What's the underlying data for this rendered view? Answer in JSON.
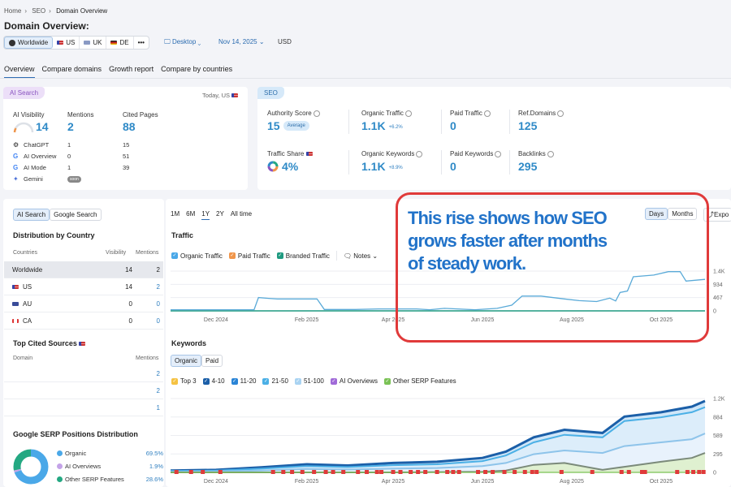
{
  "breadcrumb": [
    "Home",
    "SEO",
    "Domain Overview"
  ],
  "page_title": "Domain Overview:",
  "regions": [
    {
      "label": "Worldwide",
      "icon": "globe-icon"
    },
    {
      "label": "US",
      "icon": "flag-us"
    },
    {
      "label": "UK",
      "icon": "flag-uk"
    },
    {
      "label": "DE",
      "icon": "flag-de"
    },
    {
      "label": "•••",
      "icon": "more-icon"
    }
  ],
  "device": "Desktop",
  "date": "Nov 14, 2025",
  "currency": "USD",
  "tabs": [
    "Overview",
    "Compare domains",
    "Growth report",
    "Compare by countries"
  ],
  "ai_search": {
    "badge": "AI Search",
    "scope": "Today, US",
    "visibility_label": "AI Visibility",
    "visibility": "14",
    "mentions_label": "Mentions",
    "mentions": "2",
    "cited_label": "Cited Pages",
    "cited": "88",
    "rows": [
      {
        "name": "ChatGPT",
        "mentions": "1",
        "cited": "15"
      },
      {
        "name": "AI Overview",
        "mentions": "0",
        "cited": "51"
      },
      {
        "name": "AI Mode",
        "mentions": "1",
        "cited": "39"
      },
      {
        "name": "Gemini",
        "mentions": "soon",
        "cited": ""
      }
    ]
  },
  "seo": {
    "badge": "SEO",
    "metrics": [
      {
        "label": "Authority Score",
        "value": "15",
        "extra": "Average"
      },
      {
        "label": "Organic Traffic",
        "value": "1.1K",
        "extra": "+6.2%"
      },
      {
        "label": "Paid Traffic",
        "value": "0",
        "extra": ""
      },
      {
        "label": "Ref.Domains",
        "value": "125",
        "extra": ""
      },
      {
        "label": "Traffic Share",
        "value": "4%",
        "extra": ""
      },
      {
        "label": "Organic Keywords",
        "value": "1.1K",
        "extra": "+8.9%"
      },
      {
        "label": "Paid Keywords",
        "value": "0",
        "extra": ""
      },
      {
        "label": "Backlinks",
        "value": "295",
        "extra": ""
      }
    ]
  },
  "left": {
    "toggle": [
      "AI Search",
      "Google Search"
    ],
    "dist_title": "Distribution by Country",
    "dist_headers": [
      "Countries",
      "Visibility",
      "Mentions"
    ],
    "dist_rows": [
      {
        "country": "Worldwide",
        "visibility": "14",
        "mentions": "2"
      },
      {
        "country": "US",
        "visibility": "14",
        "mentions": "2"
      },
      {
        "country": "AU",
        "visibility": "0",
        "mentions": "0"
      },
      {
        "country": "CA",
        "visibility": "0",
        "mentions": "0"
      }
    ],
    "cited_title": "Top Cited Sources",
    "cited_headers": [
      "Domain",
      "Mentions"
    ],
    "cited_rows": [
      "2",
      "2",
      "1"
    ],
    "serp_title": "Google SERP Positions Distribution",
    "serp": [
      {
        "name": "Organic",
        "pct": "69.5%",
        "value": 69.5,
        "color": "#4aa8e8"
      },
      {
        "name": "AI Overviews",
        "pct": "1.9%",
        "value": 1.9,
        "color": "#c4a3e8"
      },
      {
        "name": "Other SERP Features",
        "pct": "28.6%",
        "value": 28.6,
        "color": "#24a882"
      }
    ]
  },
  "ranges": [
    "1M",
    "6M",
    "1Y",
    "2Y",
    "All time"
  ],
  "active_range": "1Y",
  "granularity": [
    "Days",
    "Months"
  ],
  "export": "Expo",
  "annotation": [
    "This rise shows how SEO",
    "grows faster after months",
    "of steady work."
  ],
  "chart_data": [
    {
      "type": "line",
      "title": "Traffic",
      "legend": [
        {
          "name": "Organic Traffic",
          "color": "#4aa8e8"
        },
        {
          "name": "Paid Traffic",
          "color": "#f0954a"
        },
        {
          "name": "Branded Traffic",
          "color": "#1f9a80"
        }
      ],
      "notes_label": "Notes",
      "x_ticks": [
        "Dec 2024",
        "Feb 2025",
        "Apr 2025",
        "Jun 2025",
        "Aug 2025",
        "Oct 2025"
      ],
      "y_ticks": [
        "0",
        "467",
        "934",
        "1.4K"
      ],
      "ylim": [
        0,
        1401
      ],
      "xlim": [
        "2024-11-14",
        "2025-11-14"
      ],
      "series": [
        {
          "name": "Organic Traffic",
          "color": "#5aaad8",
          "points": [
            [
              "2024-11-14",
              40
            ],
            [
              "2025-01-10",
              40
            ],
            [
              "2025-01-13",
              470
            ],
            [
              "2025-01-20",
              440
            ],
            [
              "2025-01-26",
              420
            ],
            [
              "2025-02-22",
              420
            ],
            [
              "2025-02-27",
              50
            ],
            [
              "2025-03-20",
              50
            ],
            [
              "2025-04-05",
              70
            ],
            [
              "2025-05-01",
              70
            ],
            [
              "2025-05-10",
              40
            ],
            [
              "2025-05-20",
              90
            ],
            [
              "2025-06-10",
              40
            ],
            [
              "2025-06-25",
              90
            ],
            [
              "2025-07-05",
              200
            ],
            [
              "2025-07-12",
              520
            ],
            [
              "2025-07-25",
              520
            ],
            [
              "2025-08-10",
              420
            ],
            [
              "2025-08-20",
              360
            ],
            [
              "2025-09-01",
              330
            ],
            [
              "2025-09-10",
              450
            ],
            [
              "2025-09-14",
              350
            ],
            [
              "2025-09-17",
              650
            ],
            [
              "2025-09-22",
              700
            ],
            [
              "2025-09-26",
              1200
            ],
            [
              "2025-10-10",
              1260
            ],
            [
              "2025-10-20",
              1380
            ],
            [
              "2025-10-28",
              1380
            ],
            [
              "2025-11-01",
              1050
            ],
            [
              "2025-11-14",
              1110
            ]
          ]
        },
        {
          "name": "Branded Traffic",
          "color": "#1f9a80",
          "points": [
            [
              "2024-11-14",
              0
            ],
            [
              "2025-11-14",
              0
            ]
          ]
        }
      ]
    },
    {
      "type": "area",
      "title": "Keywords",
      "tabs": [
        "Organic",
        "Paid"
      ],
      "legend": [
        {
          "name": "Top 3",
          "color": "#f5c242"
        },
        {
          "name": "4-10",
          "color": "#1b5fa8"
        },
        {
          "name": "11-20",
          "color": "#2a84d6"
        },
        {
          "name": "21-50",
          "color": "#4bb0e6"
        },
        {
          "name": "51-100",
          "color": "#a9d3f2"
        },
        {
          "name": "AI Overviews",
          "color": "#a06ad8"
        },
        {
          "name": "Other SERP Features",
          "color": "#7ac255"
        }
      ],
      "x_ticks": [
        "Dec 2024",
        "Feb 2025",
        "Apr 2025",
        "Jun 2025",
        "Aug 2025",
        "Oct 2025"
      ],
      "y_ticks": [
        "0",
        "295",
        "589",
        "884",
        "1.2K"
      ],
      "ylim": [
        0,
        1179
      ],
      "xlim": [
        "2024-11-14",
        "2025-11-14"
      ],
      "dates": [
        "2024-11-14",
        "2024-12-15",
        "2025-01-15",
        "2025-02-15",
        "2025-03-15",
        "2025-04-15",
        "2025-05-15",
        "2025-06-15",
        "2025-07-01",
        "2025-07-20",
        "2025-08-10",
        "2025-09-05",
        "2025-09-20",
        "2025-10-15",
        "2025-11-05",
        "2025-11-14"
      ],
      "series": [
        {
          "name": "4-10",
          "color": "#1b5fa8",
          "values": [
            30,
            40,
            80,
            130,
            110,
            150,
            170,
            230,
            330,
            560,
            680,
            630,
            890,
            960,
            1050,
            1140
          ]
        },
        {
          "name": "21-50",
          "color": "#4bb0e6",
          "values": [
            22,
            30,
            60,
            100,
            85,
            115,
            130,
            180,
            270,
            480,
            600,
            560,
            820,
            880,
            960,
            1040
          ]
        },
        {
          "name": "51-100",
          "color": "#8ec4ea",
          "values": [
            10,
            15,
            30,
            55,
            45,
            60,
            70,
            100,
            150,
            290,
            350,
            310,
            420,
            480,
            530,
            620
          ]
        },
        {
          "name": "Other SERP Features",
          "color": "#7b8a7a",
          "values": [
            0,
            0,
            0,
            0,
            0,
            0,
            5,
            10,
            30,
            120,
            150,
            40,
            90,
            170,
            230,
            310
          ]
        }
      ],
      "note_flag_dates": [
        "2024-11-18",
        "2024-11-28",
        "2024-12-06",
        "2024-12-18",
        "2025-01-23",
        "2025-01-30",
        "2025-02-05",
        "2025-02-12",
        "2025-02-20",
        "2025-02-28",
        "2025-03-05",
        "2025-03-12",
        "2025-03-22",
        "2025-03-28",
        "2025-04-04",
        "2025-04-07",
        "2025-04-15",
        "2025-04-20",
        "2025-04-27",
        "2025-05-02",
        "2025-05-07",
        "2025-05-15",
        "2025-05-22",
        "2025-05-26",
        "2025-05-30",
        "2025-06-12",
        "2025-06-17",
        "2025-06-22",
        "2025-06-30",
        "2025-07-07",
        "2025-07-14",
        "2025-07-19",
        "2025-07-22",
        "2025-08-08",
        "2025-08-29",
        "2025-09-18",
        "2025-09-23",
        "2025-10-02",
        "2025-10-04",
        "2025-10-26",
        "2025-11-02",
        "2025-11-06",
        "2025-11-10",
        "2025-11-13"
      ]
    }
  ]
}
